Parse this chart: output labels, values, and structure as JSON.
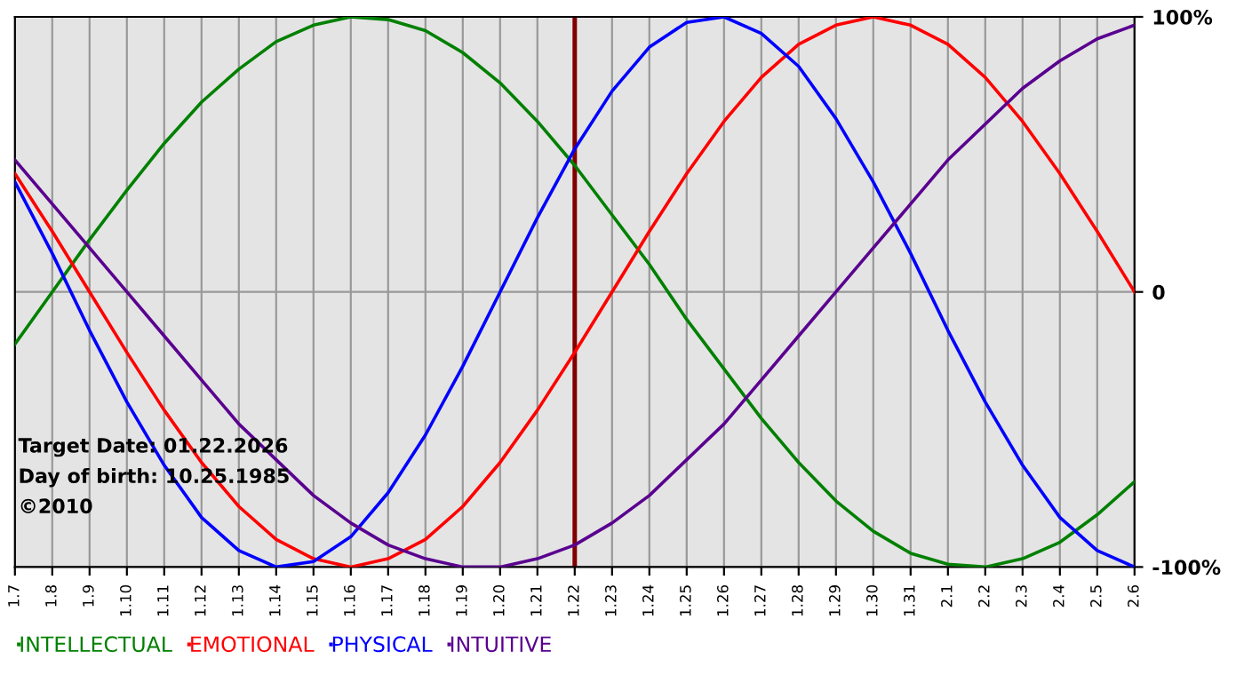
{
  "chart_data": {
    "type": "line",
    "categories": [
      "1.7",
      "1.8",
      "1.9",
      "1.10",
      "1.11",
      "1.12",
      "1.13",
      "1.14",
      "1.15",
      "1.16",
      "1.17",
      "1.18",
      "1.19",
      "1.20",
      "1.21",
      "1.22",
      "1.23",
      "1.24",
      "1.25",
      "1.26",
      "1.27",
      "1.28",
      "1.29",
      "1.30",
      "1.31",
      "2.1",
      "2.2",
      "2.3",
      "2.4",
      "2.5",
      "2.6"
    ],
    "series": [
      {
        "name": "INTELLECTUAL",
        "color": "#008000",
        "values": [
          -19,
          0,
          19,
          37,
          54,
          69,
          81,
          91,
          97,
          100,
          99,
          95,
          87,
          76,
          62,
          46,
          28,
          10,
          -10,
          -28,
          -46,
          -62,
          -76,
          -87,
          -95,
          -99,
          -100,
          -97,
          -91,
          -81,
          -69
        ]
      },
      {
        "name": "EMOTIONAL",
        "color": "#ff0000",
        "values": [
          43,
          22,
          0,
          -22,
          -43,
          -62,
          -78,
          -90,
          -97,
          -100,
          -97,
          -90,
          -78,
          -62,
          -43,
          -22,
          0,
          22,
          43,
          62,
          78,
          90,
          97,
          100,
          97,
          90,
          78,
          62,
          43,
          22,
          0
        ]
      },
      {
        "name": "PHYSICAL",
        "color": "#0000ff",
        "values": [
          40,
          14,
          -14,
          -40,
          -63,
          -82,
          -94,
          -100,
          -98,
          -89,
          -73,
          -52,
          -27,
          0,
          27,
          52,
          73,
          89,
          98,
          100,
          94,
          82,
          63,
          40,
          14,
          -14,
          -40,
          -63,
          -82,
          -94,
          -100
        ]
      },
      {
        "name": "INTUITIVE",
        "color": "#5a0090",
        "values": [
          48,
          32,
          16,
          0,
          -16,
          -32,
          -48,
          -61,
          -74,
          -84,
          -92,
          -97,
          -100,
          -100,
          -97,
          -92,
          -84,
          -74,
          -61,
          -48,
          -32,
          -16,
          0,
          16,
          32,
          48,
          61,
          74,
          84,
          92,
          97
        ]
      }
    ],
    "ylim": [
      -100,
      100
    ],
    "yticks": [
      {
        "value": -100,
        "label": "-100%"
      },
      0,
      {
        "value": 100,
        "label": "100%"
      }
    ],
    "grid": true,
    "legend": "bottom",
    "ref_lines": [
      {
        "axis": "x",
        "value": "1.22",
        "color": "#800000"
      }
    ],
    "annotations": [
      "Target Date: 01.22.2026",
      "Day of birth: 10.25.1985",
      "©2010"
    ]
  }
}
